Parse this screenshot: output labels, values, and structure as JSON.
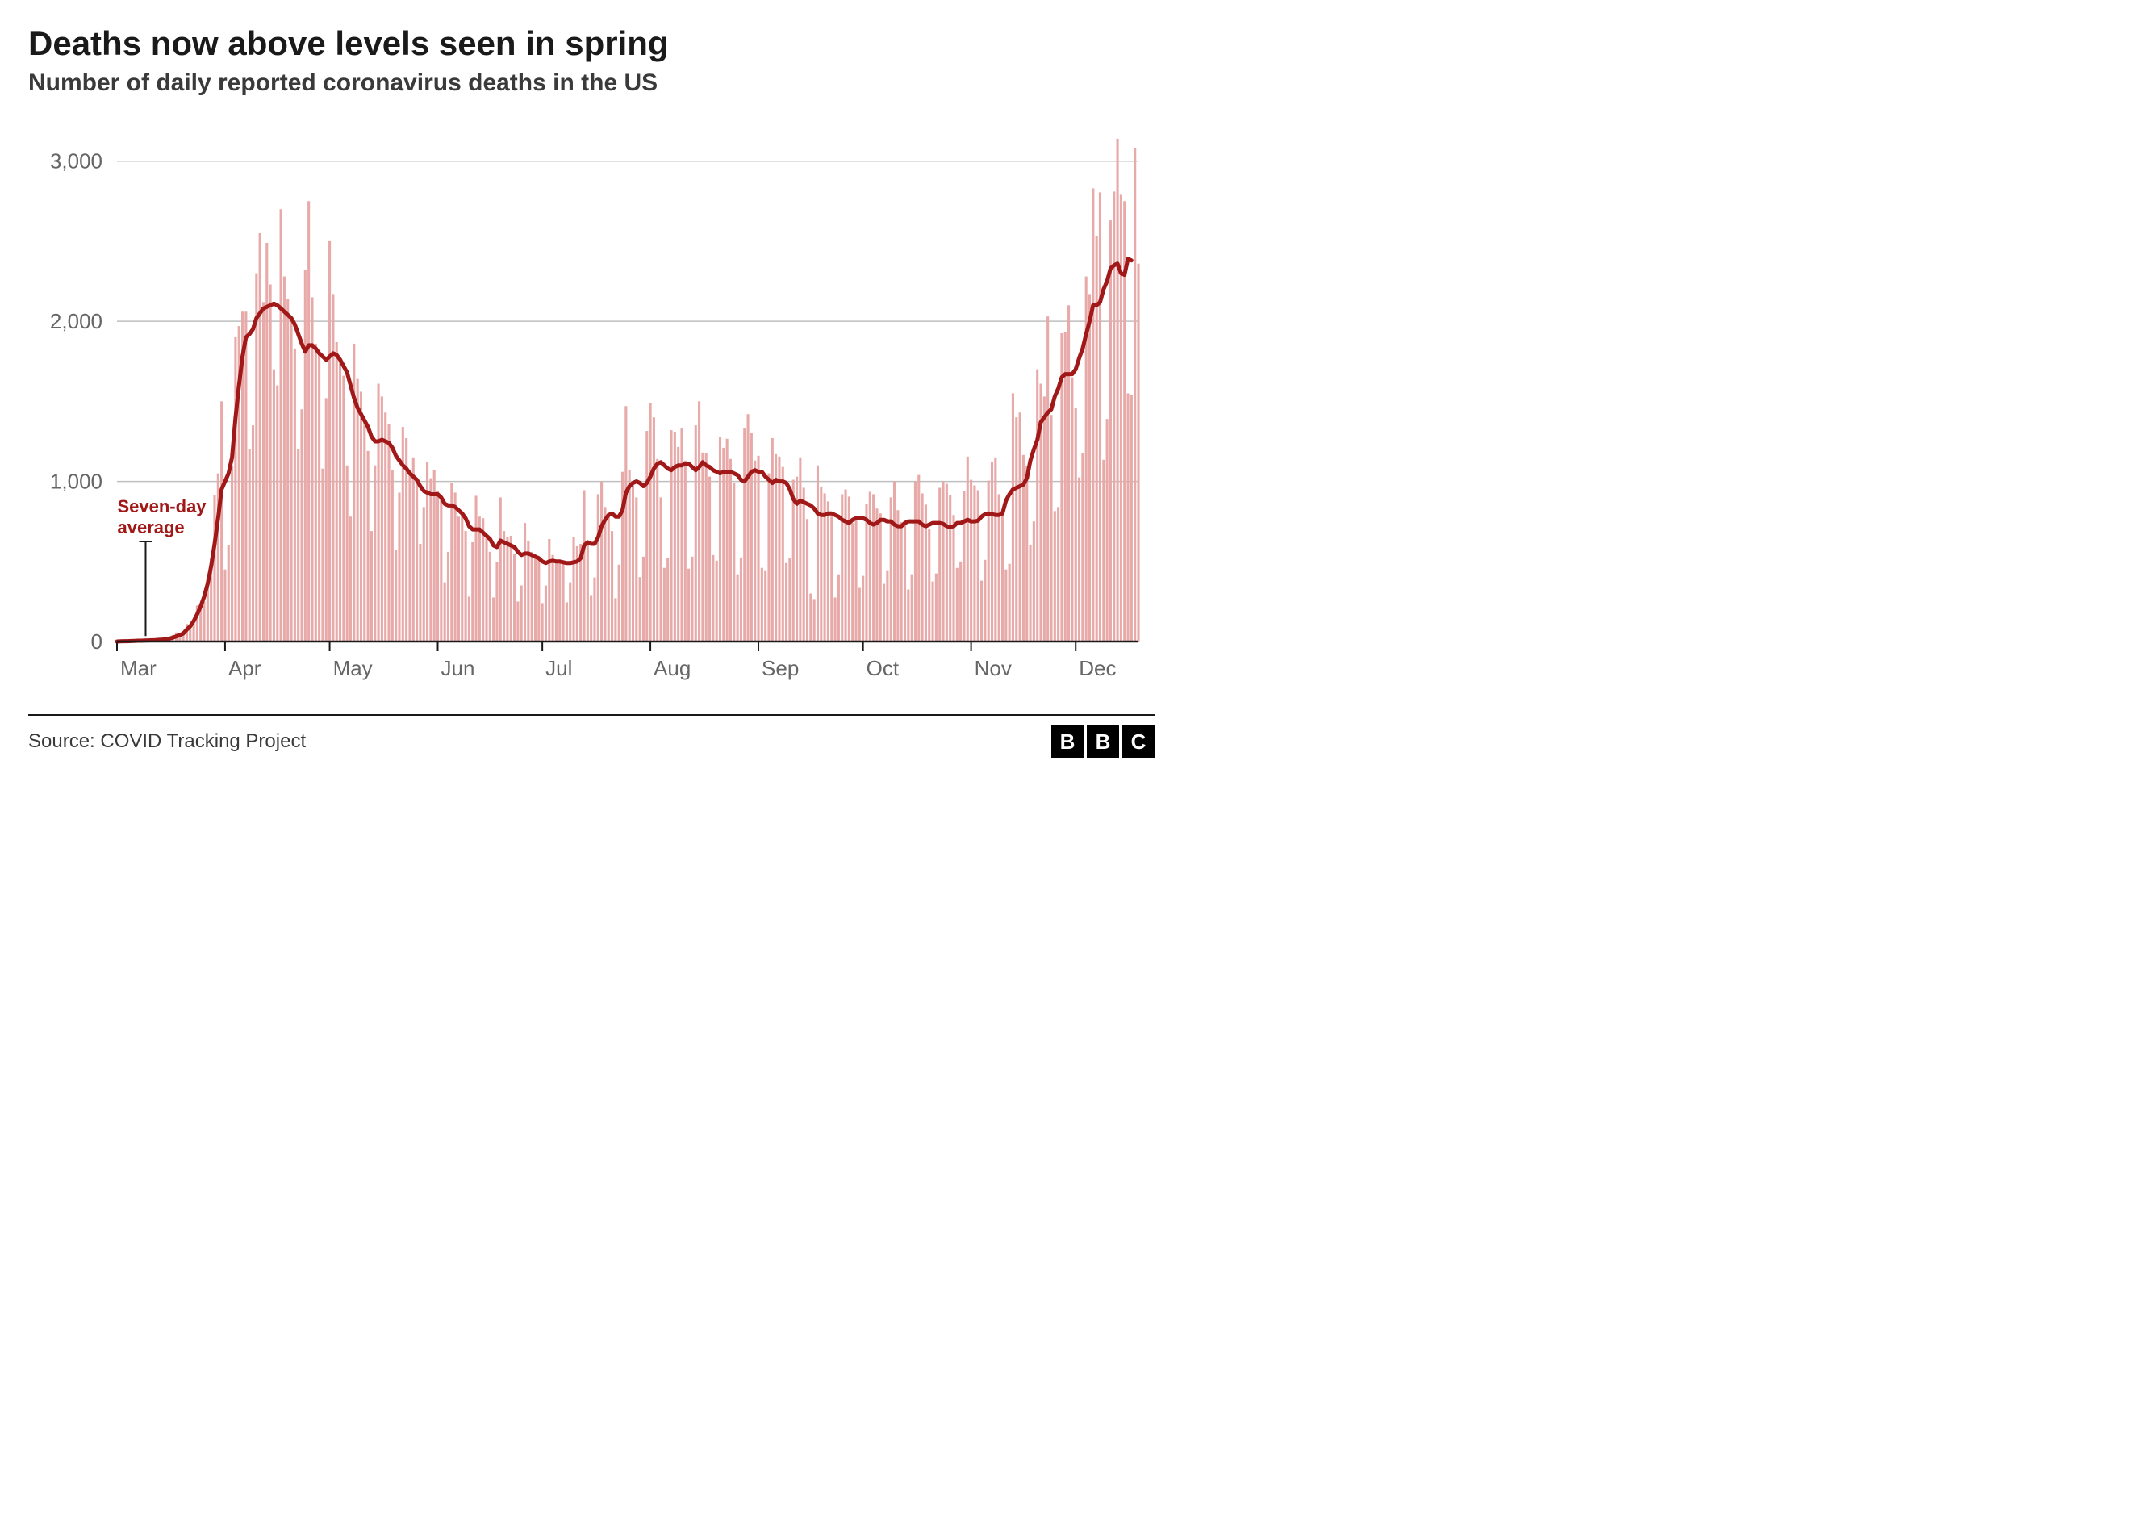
{
  "title": "Deaths now above levels seen in spring",
  "subtitle": "Number of daily reported coronavirus deaths in the US",
  "source": "Source: COVID Tracking Project",
  "logo_letters": [
    "B",
    "B",
    "C"
  ],
  "chart": {
    "type": "bar+line",
    "background_color": "#ffffff",
    "bar_color": "#e8a9a9",
    "line_color": "#a01818",
    "line_width": 5,
    "axis_color": "#1a1a1a",
    "grid_color": "#bfbfbf",
    "tick_color": "#666666",
    "label_color": "#666666",
    "label_fontsize": 26,
    "annotation_color": "#a01818",
    "annotation_fontsize": 22,
    "ylim": [
      0,
      3200
    ],
    "yticks": [
      0,
      1000,
      2000,
      3000
    ],
    "ytick_labels": [
      "0",
      "1,000",
      "2,000",
      "3,000"
    ],
    "xtick_positions": [
      0,
      31,
      61,
      92,
      122,
      153,
      184,
      214,
      245,
      275
    ],
    "xtick_labels": [
      "Mar",
      "Apr",
      "May",
      "Jun",
      "Jul",
      "Aug",
      "Sep",
      "Oct",
      "Nov",
      "Dec"
    ],
    "annotation": {
      "text_line1": "Seven-day",
      "text_line2": "average",
      "x_index": 14
    },
    "daily_values": [
      0,
      1,
      2,
      2,
      3,
      4,
      5,
      5,
      6,
      7,
      8,
      10,
      12,
      5,
      18,
      23,
      41,
      57,
      49,
      46,
      110,
      80,
      131,
      225,
      220,
      250,
      400,
      525,
      912,
      1050,
      1500,
      450,
      600,
      1100,
      1900,
      1970,
      2060,
      2060,
      1200,
      1350,
      2300,
      2550,
      2120,
      2490,
      2230,
      1700,
      1600,
      2700,
      2280,
      2140,
      2030,
      1830,
      1200,
      1450,
      2320,
      2750,
      2150,
      1860,
      1820,
      1080,
      1520,
      2500,
      2170,
      1870,
      1750,
      1660,
      1100,
      780,
      1860,
      1640,
      1560,
      1390,
      1190,
      690,
      1100,
      1610,
      1530,
      1430,
      1360,
      1070,
      570,
      930,
      1340,
      1270,
      1060,
      1150,
      1010,
      610,
      840,
      1120,
      1020,
      1070,
      940,
      890,
      370,
      560,
      990,
      930,
      780,
      800,
      690,
      280,
      620,
      910,
      780,
      770,
      650,
      560,
      275,
      495,
      900,
      690,
      650,
      660,
      550,
      250,
      350,
      740,
      630,
      560,
      540,
      525,
      240,
      350,
      640,
      540,
      510,
      510,
      495,
      245,
      370,
      650,
      595,
      610,
      945,
      600,
      290,
      400,
      920,
      1000,
      840,
      790,
      690,
      270,
      480,
      1060,
      1470,
      1070,
      975,
      900,
      402,
      530,
      1315,
      1490,
      1400,
      1140,
      900,
      460,
      520,
      1320,
      1310,
      1215,
      1330,
      1130,
      455,
      530,
      1350,
      1500,
      1180,
      1175,
      1030,
      540,
      505,
      1280,
      1210,
      1266,
      1140,
      990,
      420,
      525,
      1330,
      1420,
      1300,
      1130,
      1160,
      460,
      445,
      1050,
      1270,
      1170,
      1155,
      1090,
      490,
      520,
      1010,
      1030,
      1150,
      960,
      765,
      300,
      265,
      1100,
      968,
      925,
      875,
      780,
      275,
      420,
      920,
      950,
      905,
      740,
      760,
      335,
      410,
      860,
      935,
      920,
      830,
      800,
      360,
      445,
      900,
      1000,
      820,
      745,
      755,
      325,
      420,
      1000,
      1040,
      925,
      855,
      700,
      375,
      425,
      960,
      1000,
      985,
      912,
      790,
      460,
      500,
      940,
      1155,
      1010,
      975,
      945,
      380,
      510,
      1005,
      1120,
      1150,
      920,
      805,
      450,
      485,
      1550,
      1400,
      1430,
      1165,
      1095,
      605,
      750,
      1700,
      1610,
      1530,
      2030,
      1415,
      815,
      840,
      1925,
      1935,
      2100,
      1650,
      1460,
      1025,
      1175,
      2280,
      2170,
      2830,
      2530,
      2805,
      1135,
      1390,
      2630,
      2810,
      3140,
      2790,
      2750,
      1550,
      1540,
      3080,
      2360
    ],
    "seven_day_avg": [
      0,
      1,
      2,
      2,
      3,
      4,
      5,
      5,
      6,
      7,
      8,
      9,
      11,
      12,
      14,
      18,
      24,
      32,
      40,
      50,
      74,
      95,
      128,
      170,
      220,
      280,
      360,
      470,
      610,
      770,
      950,
      1000,
      1050,
      1150,
      1400,
      1600,
      1780,
      1900,
      1920,
      1950,
      2020,
      2050,
      2080,
      2090,
      2100,
      2110,
      2100,
      2080,
      2060,
      2040,
      2020,
      1980,
      1920,
      1860,
      1810,
      1850,
      1850,
      1830,
      1800,
      1780,
      1760,
      1780,
      1800,
      1790,
      1760,
      1720,
      1680,
      1600,
      1520,
      1460,
      1420,
      1380,
      1340,
      1280,
      1250,
      1250,
      1260,
      1250,
      1240,
      1210,
      1160,
      1130,
      1100,
      1080,
      1050,
      1030,
      1010,
      970,
      940,
      930,
      920,
      920,
      920,
      900,
      860,
      850,
      850,
      840,
      820,
      800,
      770,
      720,
      700,
      700,
      700,
      680,
      660,
      640,
      600,
      590,
      630,
      620,
      610,
      600,
      590,
      560,
      540,
      550,
      550,
      540,
      530,
      520,
      500,
      490,
      500,
      505,
      500,
      500,
      495,
      490,
      490,
      495,
      500,
      520,
      600,
      620,
      610,
      610,
      650,
      720,
      760,
      790,
      800,
      780,
      780,
      820,
      930,
      970,
      990,
      1000,
      990,
      970,
      990,
      1030,
      1080,
      1110,
      1120,
      1100,
      1080,
      1070,
      1090,
      1100,
      1100,
      1110,
      1110,
      1090,
      1070,
      1090,
      1120,
      1100,
      1090,
      1070,
      1060,
      1050,
      1060,
      1060,
      1060,
      1050,
      1040,
      1010,
      1000,
      1030,
      1060,
      1070,
      1060,
      1060,
      1030,
      1010,
      990,
      1010,
      1000,
      1000,
      990,
      950,
      890,
      860,
      880,
      870,
      860,
      850,
      830,
      800,
      790,
      790,
      800,
      800,
      790,
      780,
      760,
      750,
      740,
      760,
      770,
      770,
      770,
      760,
      740,
      730,
      740,
      760,
      760,
      750,
      750,
      730,
      720,
      720,
      740,
      750,
      750,
      750,
      750,
      730,
      720,
      730,
      740,
      740,
      740,
      735,
      720,
      715,
      720,
      740,
      740,
      750,
      760,
      750,
      750,
      755,
      780,
      795,
      800,
      795,
      790,
      790,
      800,
      880,
      920,
      950,
      960,
      970,
      980,
      1020,
      1130,
      1200,
      1260,
      1370,
      1400,
      1430,
      1450,
      1530,
      1580,
      1650,
      1670,
      1670,
      1670,
      1700,
      1770,
      1830,
      1920,
      2000,
      2100,
      2100,
      2120,
      2200,
      2250,
      2330,
      2350,
      2360,
      2300,
      2290,
      2390,
      2380
    ]
  }
}
